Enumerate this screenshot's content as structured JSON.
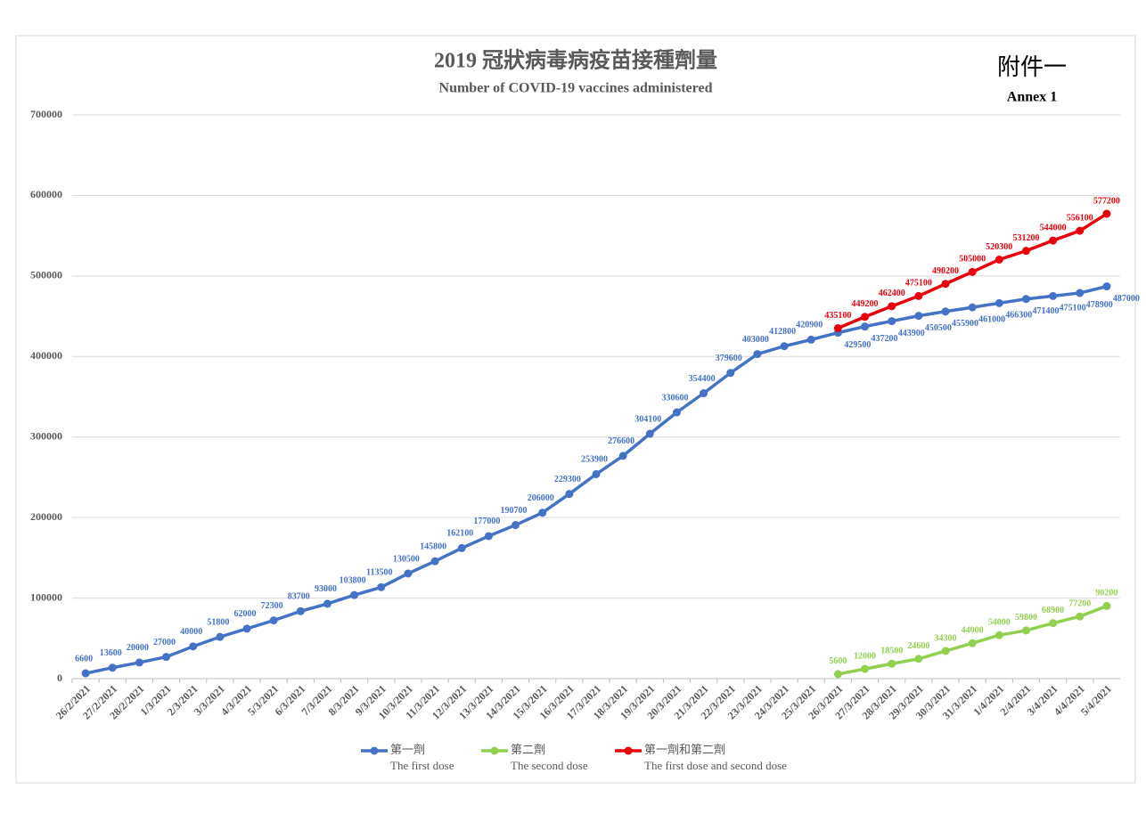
{
  "chart_data": {
    "type": "line",
    "title": "2019 冠狀病毒病疫苗接種劑量",
    "subtitle": "Number of COVID-19 vaccines administered",
    "annex_zh": "附件一",
    "annex_en": "Annex 1",
    "categories": [
      "26/2/2021",
      "27/2/2021",
      "28/2/2021",
      "1/3/2021",
      "2/3/2021",
      "3/3/2021",
      "4/3/2021",
      "5/3/2021",
      "6/3/2021",
      "7/3/2021",
      "8/3/2021",
      "9/3/2021",
      "10/3/2021",
      "11/3/2021",
      "12/3/2021",
      "13/3/2021",
      "14/3/2021",
      "15/3/2021",
      "16/3/2021",
      "17/3/2021",
      "18/3/2021",
      "19/3/2021",
      "20/3/2021",
      "21/3/2021",
      "22/3/2021",
      "23/3/2021",
      "24/3/2021",
      "25/3/2021",
      "26/3/2021",
      "27/3/2021",
      "28/3/2021",
      "29/3/2021",
      "30/3/2021",
      "31/3/2021",
      "1/4/2021",
      "2/4/2021",
      "3/4/2021",
      "4/4/2021",
      "5/4/2021"
    ],
    "series": [
      {
        "name": "第一劑",
        "name_en": "The first dose",
        "color": "#4472c4",
        "values": [
          6600,
          13600,
          20000,
          27000,
          40000,
          51800,
          62000,
          72300,
          83700,
          93000,
          103800,
          113500,
          130500,
          145800,
          162100,
          177000,
          190700,
          206000,
          229300,
          253900,
          276600,
          304100,
          330600,
          354400,
          379600,
          403000,
          412800,
          420900,
          429500,
          437200,
          443900,
          450500,
          455900,
          461000,
          466300,
          471400,
          475100,
          478900,
          487000
        ]
      },
      {
        "name": "第二劑",
        "name_en": "The second dose",
        "color": "#92d050",
        "values": [
          null,
          null,
          null,
          null,
          null,
          null,
          null,
          null,
          null,
          null,
          null,
          null,
          null,
          null,
          null,
          null,
          null,
          null,
          null,
          null,
          null,
          null,
          null,
          null,
          null,
          null,
          null,
          null,
          5600,
          12000,
          18500,
          24600,
          34300,
          44000,
          54000,
          59800,
          68900,
          77200,
          90200
        ]
      },
      {
        "name": "第一劑和第二劑",
        "name_en": "The first dose and second dose",
        "color": "#e8000b",
        "values": [
          null,
          null,
          null,
          null,
          null,
          null,
          null,
          null,
          null,
          null,
          null,
          null,
          null,
          null,
          null,
          null,
          null,
          null,
          null,
          null,
          null,
          null,
          null,
          null,
          null,
          null,
          null,
          null,
          435100,
          449200,
          462400,
          475100,
          490200,
          505000,
          520300,
          531200,
          544000,
          556100,
          577200
        ]
      }
    ],
    "ylim": [
      0,
      700000
    ],
    "yticks": [
      0,
      100000,
      200000,
      300000,
      400000,
      500000,
      600000,
      700000
    ],
    "grid": true,
    "legend": "bottom"
  }
}
